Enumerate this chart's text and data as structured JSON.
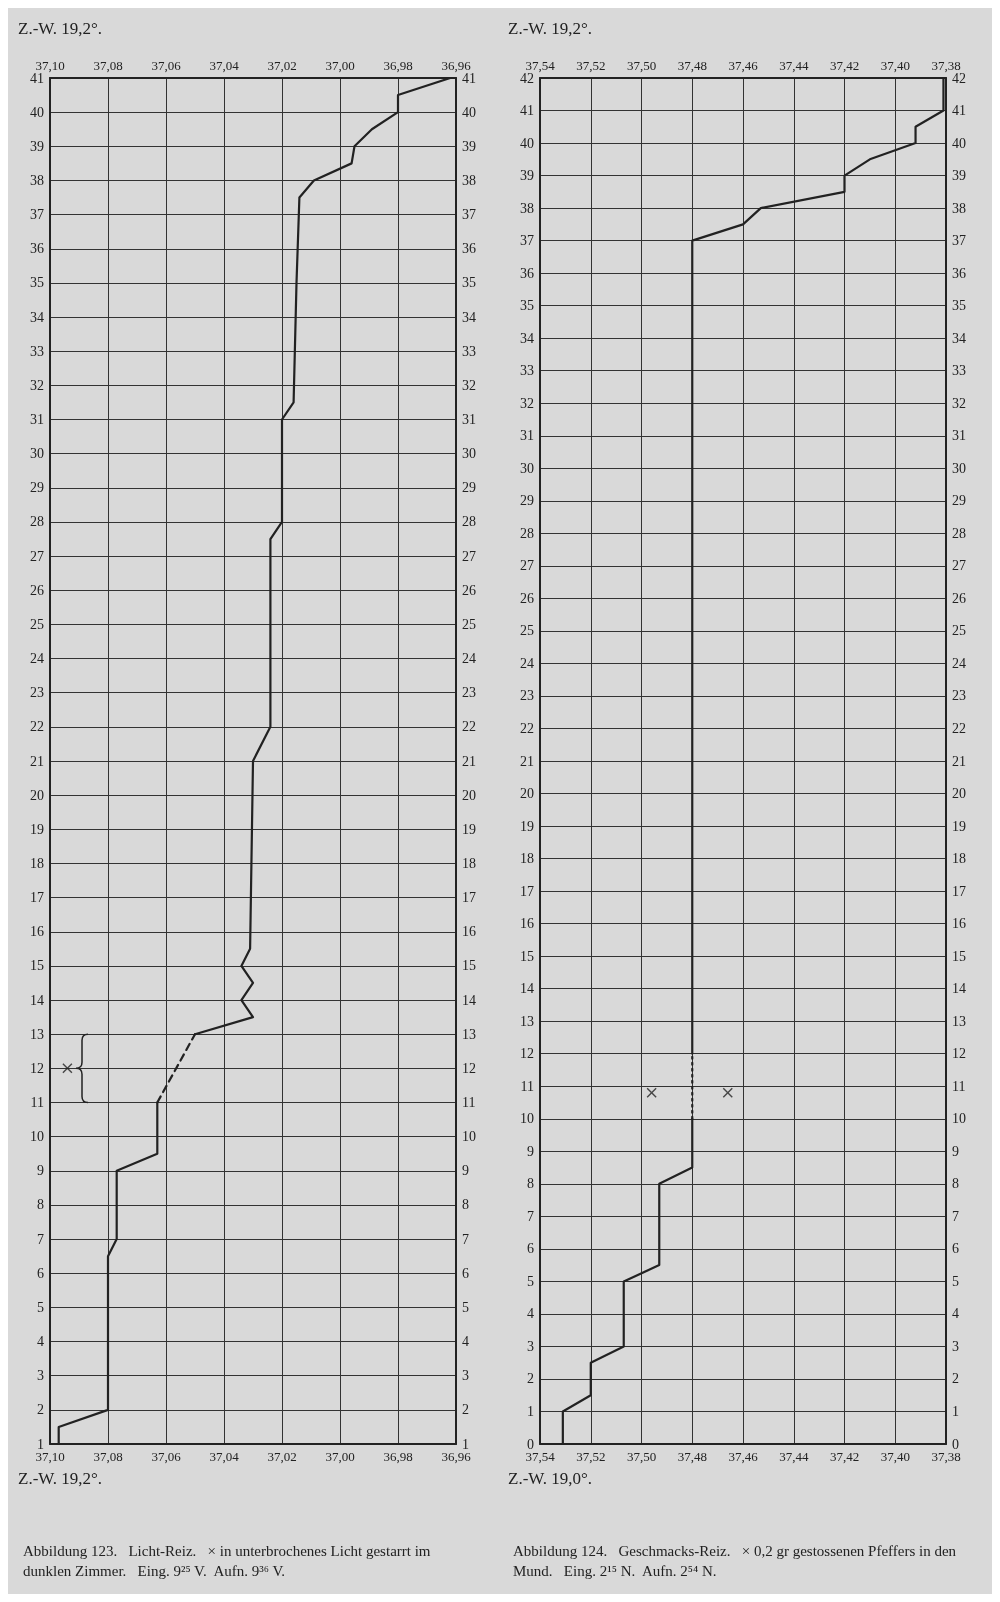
{
  "chart_data": [
    {
      "type": "line",
      "title": "Abbildung 123.   Licht-Reiz.   × in unterbrochenes Licht gestarrt im dunklen Zimmer.   Eing. 9²⁵ V.  Aufn. 9³⁶ V.",
      "annotations": [
        "Z.-W. 19,2°.",
        "Z.-W. 19,2°."
      ],
      "series": [
        {
          "color": "#222222",
          "line_style": "solid",
          "x": [
            37.097,
            37.097,
            37.08,
            37.08,
            37.077,
            37.077,
            37.063,
            37.063
          ],
          "values": [
            1,
            1.5,
            2,
            6.5,
            7,
            9,
            9.5,
            11
          ]
        },
        {
          "color": "#222222",
          "line_style": "dashed",
          "x": [
            37.063,
            37.05
          ],
          "values": [
            11,
            13
          ]
        },
        {
          "color": "#222222",
          "line_style": "solid",
          "x": [
            37.05,
            37.03,
            37.034,
            37.03,
            37.034,
            37.031,
            37.03,
            37.024,
            37.024,
            37.02,
            37.02,
            37.016,
            37.015,
            37.014,
            37.009,
            36.996,
            36.995,
            36.989,
            36.98,
            36.98,
            36.962
          ],
          "values": [
            13,
            13.5,
            14,
            14.5,
            15,
            15.5,
            21,
            22,
            27.5,
            28,
            31,
            31.5,
            35,
            37.5,
            38,
            38.5,
            39,
            39.5,
            40,
            40.5,
            41
          ]
        },
        {
          "type": "scatter",
          "color": "#222222",
          "marker": "cross",
          "x": [
            37.094
          ],
          "values": [
            12
          ]
        }
      ],
      "marker": "none",
      "grid": true,
      "ylim": [
        1,
        41
      ],
      "yticks": [
        1,
        2,
        3,
        4,
        5,
        6,
        7,
        8,
        9,
        10,
        11,
        12,
        13,
        14,
        15,
        16,
        17,
        18,
        19,
        20,
        21,
        22,
        23,
        24,
        25,
        26,
        27,
        28,
        29,
        30,
        31,
        32,
        33,
        34,
        35,
        36,
        37,
        38,
        39,
        40,
        41
      ],
      "y2lim": [
        1,
        41
      ],
      "y2ticks": [
        1,
        2,
        3,
        4,
        5,
        6,
        7,
        8,
        9,
        10,
        11,
        12,
        13,
        14,
        15,
        16,
        17,
        18,
        19,
        20,
        21,
        22,
        23,
        24,
        25,
        26,
        27,
        28,
        29,
        30,
        31,
        32,
        33,
        34,
        35,
        36,
        37,
        38,
        39,
        40,
        41
      ],
      "xlim": [
        37.1,
        36.96
      ],
      "xticks": [
        {
          "value": 36.96,
          "label": "36,96"
        },
        {
          "value": 36.98,
          "label": "36,98"
        },
        {
          "value": 37.0,
          "label": "37,00"
        },
        {
          "value": 37.02,
          "label": "37,02"
        },
        {
          "value": 37.04,
          "label": "37,04"
        },
        {
          "value": 37.06,
          "label": "37,06"
        },
        {
          "value": 37.08,
          "label": "37,08"
        },
        {
          "value": 37.1,
          "label": "37,10"
        }
      ],
      "x2lim": [
        37.1,
        36.96
      ],
      "x2ticks": [
        {
          "value": 36.96,
          "label": "36,96"
        },
        {
          "value": 36.98,
          "label": "36,98"
        },
        {
          "value": 37.0,
          "label": "37,00"
        },
        {
          "value": 37.02,
          "label": "37,02"
        },
        {
          "value": 37.04,
          "label": "37,04"
        },
        {
          "value": 37.06,
          "label": "37,06"
        },
        {
          "value": 37.08,
          "label": "37,08"
        },
        {
          "value": 37.1,
          "label": "37,10"
        }
      ]
    },
    {
      "type": "line",
      "title": "Abbildung 124.   Geschmacks-Reiz.   × 0,2 gr gestossenen Pfeffers in den Mund.   Eing. 2¹⁵ N.  Aufn. 2⁵⁴ N.",
      "annotations": [
        "Z.-W. 19,0°.",
        "Z.-W. 19,2°."
      ],
      "series": [
        {
          "color": "#222222",
          "line_style": "solid",
          "x": [
            37.531,
            37.531,
            37.52,
            37.52,
            37.507,
            37.507,
            37.493,
            37.493,
            37.48,
            37.48
          ],
          "values": [
            0,
            1,
            1.5,
            2.5,
            3,
            5,
            5.5,
            8,
            8.5,
            10
          ]
        },
        {
          "color": "#222222",
          "line_style": "dotted",
          "x": [
            37.48,
            37.48
          ],
          "values": [
            10,
            12
          ]
        },
        {
          "color": "#222222",
          "line_style": "solid",
          "x": [
            37.48,
            37.48,
            37.46,
            37.453,
            37.42,
            37.42,
            37.41,
            37.392,
            37.392,
            37.381,
            37.381
          ],
          "values": [
            12,
            37,
            37.5,
            38,
            38.5,
            39,
            39.5,
            40,
            40.5,
            41,
            42
          ]
        },
        {
          "type": "scatter",
          "color": "#222222",
          "marker": "cross",
          "x": [
            37.496,
            37.466
          ],
          "values": [
            10.8,
            10.8
          ]
        }
      ],
      "marker": "none",
      "grid": true,
      "ylim": [
        0,
        42
      ],
      "yticks": [
        0,
        1,
        2,
        3,
        4,
        5,
        6,
        7,
        8,
        9,
        10,
        11,
        12,
        13,
        14,
        15,
        16,
        17,
        18,
        19,
        20,
        21,
        22,
        23,
        24,
        25,
        26,
        27,
        28,
        29,
        30,
        31,
        32,
        33,
        34,
        35,
        36,
        37,
        38,
        39,
        40,
        41,
        42
      ],
      "y2lim": [
        0,
        42
      ],
      "y2ticks": [
        0,
        1,
        2,
        3,
        4,
        5,
        6,
        7,
        8,
        9,
        10,
        11,
        12,
        13,
        14,
        15,
        16,
        17,
        18,
        19,
        20,
        21,
        22,
        23,
        24,
        25,
        26,
        27,
        28,
        29,
        30,
        31,
        32,
        33,
        34,
        35,
        36,
        37,
        38,
        39,
        40,
        41,
        42
      ],
      "xlim": [
        37.54,
        37.38
      ],
      "xticks": [
        {
          "value": 37.38,
          "label": "37,38"
        },
        {
          "value": 37.4,
          "label": "37,40"
        },
        {
          "value": 37.42,
          "label": "37,42"
        },
        {
          "value": 37.44,
          "label": "37,44"
        },
        {
          "value": 37.46,
          "label": "37,46"
        },
        {
          "value": 37.48,
          "label": "37,48"
        },
        {
          "value": 37.5,
          "label": "37,50"
        },
        {
          "value": 37.52,
          "label": "37,52"
        },
        {
          "value": 37.54,
          "label": "37,54"
        }
      ],
      "x2lim": [
        37.54,
        37.38
      ],
      "x2ticks": [
        {
          "value": 37.38,
          "label": "37,38"
        },
        {
          "value": 37.4,
          "label": "37,40"
        },
        {
          "value": 37.42,
          "label": "37,42"
        },
        {
          "value": 37.44,
          "label": "37,44"
        },
        {
          "value": 37.46,
          "label": "37,46"
        },
        {
          "value": 37.48,
          "label": "37,48"
        },
        {
          "value": 37.5,
          "label": "37,50"
        },
        {
          "value": 37.52,
          "label": "37,52"
        },
        {
          "value": 37.54,
          "label": "37,54"
        }
      ]
    }
  ]
}
